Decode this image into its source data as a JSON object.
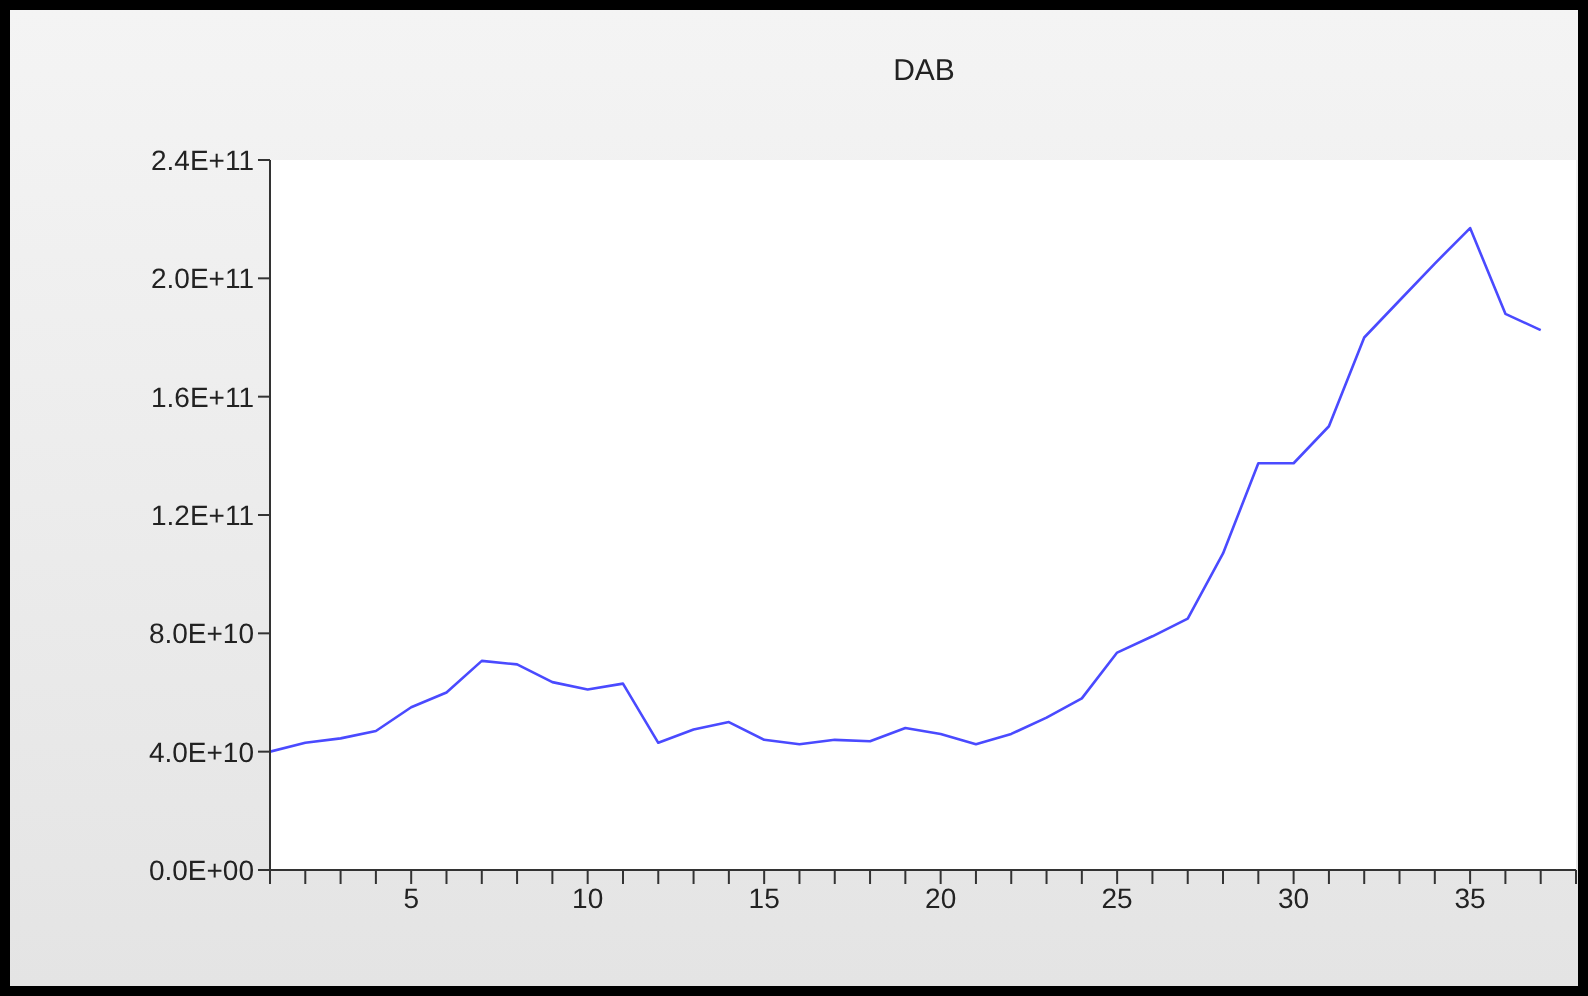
{
  "chart_data": {
    "type": "line",
    "title": "DAB",
    "x": [
      1,
      2,
      3,
      4,
      5,
      6,
      7,
      8,
      9,
      10,
      11,
      12,
      13,
      14,
      15,
      16,
      17,
      18,
      19,
      20,
      21,
      22,
      23,
      24,
      25,
      26,
      27,
      28,
      29,
      30,
      31,
      32,
      33,
      34,
      35,
      36,
      37
    ],
    "series": [
      {
        "color": "#4a4aff",
        "values": [
          40000000000,
          43000000000,
          44500000000,
          47000000000,
          55000000000,
          60000000000,
          70700000000,
          69500000000,
          63500000000,
          61000000000,
          63000000000,
          43000000000,
          47500000000,
          50000000000,
          44000000000,
          42500000000,
          44000000000,
          43500000000,
          48000000000,
          46000000000,
          42500000000,
          46000000000,
          51500000000,
          58000000000,
          73500000000,
          79000000000,
          85000000000,
          107000000000,
          137500000000,
          137500000000,
          150000000000,
          180000000000,
          192500000000,
          205000000000,
          217000000000,
          188000000000,
          182500000000
        ]
      }
    ],
    "xlim": [
      1,
      38
    ],
    "xticks": [
      {
        "value": 1,
        "label": null
      },
      {
        "value": 2,
        "label": null
      },
      {
        "value": 3,
        "label": null
      },
      {
        "value": 4,
        "label": null
      },
      5,
      {
        "value": 6,
        "label": null
      },
      {
        "value": 7,
        "label": null
      },
      {
        "value": 8,
        "label": null
      },
      {
        "value": 9,
        "label": null
      },
      10,
      {
        "value": 11,
        "label": null
      },
      {
        "value": 12,
        "label": null
      },
      {
        "value": 13,
        "label": null
      },
      {
        "value": 14,
        "label": null
      },
      15,
      {
        "value": 16,
        "label": null
      },
      {
        "value": 17,
        "label": null
      },
      {
        "value": 18,
        "label": null
      },
      {
        "value": 19,
        "label": null
      },
      20,
      {
        "value": 21,
        "label": null
      },
      {
        "value": 22,
        "label": null
      },
      {
        "value": 23,
        "label": null
      },
      {
        "value": 24,
        "label": null
      },
      25,
      {
        "value": 26,
        "label": null
      },
      {
        "value": 27,
        "label": null
      },
      {
        "value": 28,
        "label": null
      },
      {
        "value": 29,
        "label": null
      },
      30,
      {
        "value": 31,
        "label": null
      },
      {
        "value": 32,
        "label": null
      },
      {
        "value": 33,
        "label": null
      },
      {
        "value": 34,
        "label": null
      },
      35,
      {
        "value": 36,
        "label": null
      },
      {
        "value": 37,
        "label": null
      },
      {
        "value": 38,
        "label": null
      }
    ],
    "ylim": [
      0,
      240000000000
    ],
    "yticks": [
      {
        "value": 0,
        "label": "0.0E+00"
      },
      {
        "value": 40000000000,
        "label": "4.0E+10"
      },
      {
        "value": 80000000000,
        "label": "8.0E+10"
      },
      {
        "value": 120000000000,
        "label": "1.2E+11"
      },
      {
        "value": 160000000000,
        "label": "1.6E+11"
      },
      {
        "value": 200000000000,
        "label": "2.0E+11"
      },
      {
        "value": 240000000000,
        "label": "2.4E+11"
      }
    ],
    "grid": false,
    "marker": "none",
    "line_style": "solid"
  }
}
